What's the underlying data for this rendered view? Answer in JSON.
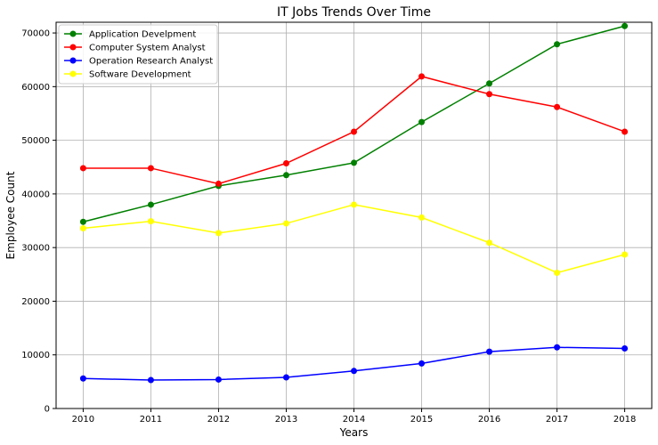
{
  "chart_data": {
    "type": "line",
    "title": "IT Jobs Trends Over Time",
    "xlabel": "Years",
    "ylabel": "Employee Count",
    "x": [
      2010,
      2011,
      2012,
      2013,
      2014,
      2015,
      2016,
      2017,
      2018
    ],
    "x_ticks": [
      "2010",
      "2011",
      "2012",
      "2013",
      "2014",
      "2015",
      "2016",
      "2017",
      "2018"
    ],
    "y_ticks": [
      "0",
      "10000",
      "20000",
      "30000",
      "40000",
      "50000",
      "60000",
      "70000"
    ],
    "ylim": [
      0,
      72000
    ],
    "xlim": [
      2009.6,
      2018.4
    ],
    "grid": true,
    "legend_position": "top-left",
    "series": [
      {
        "name": "Application Develpment",
        "color": "#008000",
        "values": [
          34800,
          38000,
          41500,
          43500,
          45800,
          53400,
          60600,
          67900,
          71300
        ]
      },
      {
        "name": "Computer System Analyst",
        "color": "#ff0000",
        "values": [
          44800,
          44800,
          41900,
          45700,
          51600,
          61900,
          58600,
          56200,
          51600
        ]
      },
      {
        "name": "Operation Research Analyst",
        "color": "#0000ff",
        "values": [
          5600,
          5300,
          5400,
          5800,
          7000,
          8400,
          10600,
          11400,
          11200
        ]
      },
      {
        "name": "Software Development",
        "color": "#ffff00",
        "values": [
          33600,
          34900,
          32700,
          34500,
          38000,
          35600,
          30900,
          25300,
          28700
        ]
      }
    ]
  }
}
